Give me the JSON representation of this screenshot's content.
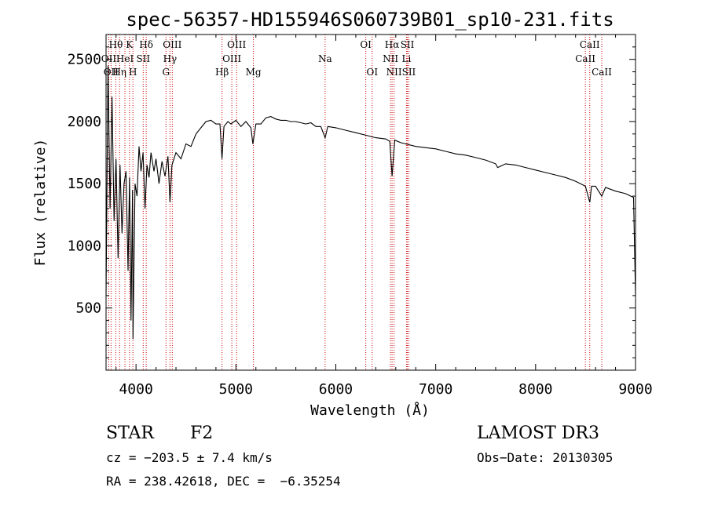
{
  "chart_data": {
    "type": "line",
    "title": "spec-56357-HD155946S060739B01_sp10-231.fits",
    "xlabel": "Wavelength (Å)",
    "ylabel": "Flux (relative)",
    "xlim": [
      3700,
      9000
    ],
    "ylim": [
      0,
      2700
    ],
    "xticks": [
      4000,
      5000,
      6000,
      7000,
      8000,
      9000
    ],
    "yticks": [
      500,
      1000,
      1500,
      2000,
      2500
    ],
    "series": [
      {
        "name": "spectrum",
        "points": [
          [
            3700,
            600
          ],
          [
            3720,
            2450
          ],
          [
            3740,
            1300
          ],
          [
            3760,
            2200
          ],
          [
            3780,
            1200
          ],
          [
            3800,
            1700
          ],
          [
            3820,
            900
          ],
          [
            3840,
            1650
          ],
          [
            3860,
            1100
          ],
          [
            3880,
            1500
          ],
          [
            3900,
            1600
          ],
          [
            3920,
            800
          ],
          [
            3935,
            1550
          ],
          [
            3950,
            400
          ],
          [
            3965,
            1450
          ],
          [
            3970,
            250
          ],
          [
            3990,
            1500
          ],
          [
            4010,
            1400
          ],
          [
            4030,
            1800
          ],
          [
            4050,
            1600
          ],
          [
            4070,
            1750
          ],
          [
            4090,
            1300
          ],
          [
            4110,
            1650
          ],
          [
            4130,
            1550
          ],
          [
            4150,
            1750
          ],
          [
            4180,
            1600
          ],
          [
            4200,
            1700
          ],
          [
            4230,
            1500
          ],
          [
            4260,
            1680
          ],
          [
            4290,
            1560
          ],
          [
            4320,
            1720
          ],
          [
            4340,
            1350
          ],
          [
            4360,
            1650
          ],
          [
            4400,
            1750
          ],
          [
            4450,
            1700
          ],
          [
            4500,
            1820
          ],
          [
            4550,
            1800
          ],
          [
            4600,
            1900
          ],
          [
            4650,
            1950
          ],
          [
            4700,
            2000
          ],
          [
            4750,
            2010
          ],
          [
            4800,
            1980
          ],
          [
            4840,
            1980
          ],
          [
            4861,
            1700
          ],
          [
            4880,
            1960
          ],
          [
            4920,
            2000
          ],
          [
            4950,
            1980
          ],
          [
            5000,
            2010
          ],
          [
            5050,
            1960
          ],
          [
            5100,
            2000
          ],
          [
            5150,
            1950
          ],
          [
            5170,
            1820
          ],
          [
            5200,
            1980
          ],
          [
            5250,
            1980
          ],
          [
            5300,
            2030
          ],
          [
            5350,
            2040
          ],
          [
            5400,
            2020
          ],
          [
            5450,
            2010
          ],
          [
            5500,
            2010
          ],
          [
            5550,
            2000
          ],
          [
            5600,
            2000
          ],
          [
            5650,
            1990
          ],
          [
            5700,
            1980
          ],
          [
            5750,
            1990
          ],
          [
            5800,
            1960
          ],
          [
            5850,
            1960
          ],
          [
            5893,
            1870
          ],
          [
            5920,
            1960
          ],
          [
            6000,
            1950
          ],
          [
            6100,
            1930
          ],
          [
            6200,
            1910
          ],
          [
            6300,
            1890
          ],
          [
            6400,
            1870
          ],
          [
            6500,
            1860
          ],
          [
            6540,
            1840
          ],
          [
            6563,
            1560
          ],
          [
            6590,
            1850
          ],
          [
            6650,
            1830
          ],
          [
            6700,
            1820
          ],
          [
            6800,
            1800
          ],
          [
            6900,
            1790
          ],
          [
            7000,
            1780
          ],
          [
            7100,
            1760
          ],
          [
            7200,
            1740
          ],
          [
            7300,
            1730
          ],
          [
            7400,
            1710
          ],
          [
            7500,
            1690
          ],
          [
            7600,
            1660
          ],
          [
            7620,
            1630
          ],
          [
            7700,
            1660
          ],
          [
            7800,
            1650
          ],
          [
            7900,
            1630
          ],
          [
            8000,
            1610
          ],
          [
            8100,
            1590
          ],
          [
            8200,
            1570
          ],
          [
            8300,
            1550
          ],
          [
            8400,
            1520
          ],
          [
            8498,
            1480
          ],
          [
            8542,
            1350
          ],
          [
            8560,
            1480
          ],
          [
            8600,
            1480
          ],
          [
            8662,
            1400
          ],
          [
            8700,
            1470
          ],
          [
            8800,
            1440
          ],
          [
            8900,
            1420
          ],
          [
            8980,
            1390
          ],
          [
            9000,
            600
          ]
        ]
      }
    ],
    "lines": [
      {
        "wl": 3727,
        "label": "OII",
        "row": 1
      },
      {
        "wl": 3750,
        "label": "OII",
        "row": 2
      },
      {
        "wl": 3798,
        "label": "Hθ",
        "row": 0
      },
      {
        "wl": 3835,
        "label": "Hη",
        "row": 2
      },
      {
        "wl": 3889,
        "label": "HeI",
        "row": 1
      },
      {
        "wl": 3934,
        "label": "K",
        "row": 0
      },
      {
        "wl": 3969,
        "label": "H",
        "row": 2
      },
      {
        "wl": 4072,
        "label": "SII",
        "row": 1
      },
      {
        "wl": 4102,
        "label": "Hδ",
        "row": 0
      },
      {
        "wl": 4300,
        "label": "G",
        "row": 2
      },
      {
        "wl": 4340,
        "label": "Hγ",
        "row": 1
      },
      {
        "wl": 4363,
        "label": "OIII",
        "row": 0
      },
      {
        "wl": 4861,
        "label": "Hβ",
        "row": 2
      },
      {
        "wl": 4959,
        "label": "OIII",
        "row": 1
      },
      {
        "wl": 5007,
        "label": "OIII",
        "row": 0
      },
      {
        "wl": 5175,
        "label": "Mg",
        "row": 2
      },
      {
        "wl": 5893,
        "label": "Na",
        "row": 1
      },
      {
        "wl": 6300,
        "label": "OI",
        "row": 0
      },
      {
        "wl": 6364,
        "label": "OI",
        "row": 2
      },
      {
        "wl": 6548,
        "label": "NII",
        "row": 1
      },
      {
        "wl": 6563,
        "label": "Hα",
        "row": 0
      },
      {
        "wl": 6583,
        "label": "NII",
        "row": 2
      },
      {
        "wl": 6707,
        "label": "Li",
        "row": 1
      },
      {
        "wl": 6716,
        "label": "SII",
        "row": 0
      },
      {
        "wl": 6731,
        "label": "SII",
        "row": 2
      },
      {
        "wl": 8498,
        "label": "CaII",
        "row": 1
      },
      {
        "wl": 8542,
        "label": "CaII",
        "row": 0
      },
      {
        "wl": 8662,
        "label": "CaII",
        "row": 2
      }
    ]
  },
  "info": {
    "class": "STAR",
    "subclass": "F2",
    "survey": "LAMOST DR3",
    "cz": "cz = −203.5 ± 7.4 km/s",
    "obs_date": "Obs−Date: 20130305",
    "coords": "RA = 238.42618, DEC =  −6.35254"
  },
  "colors": {
    "axis": "#000000",
    "spectrum": "#000000",
    "line_marker": "#cc0000"
  }
}
